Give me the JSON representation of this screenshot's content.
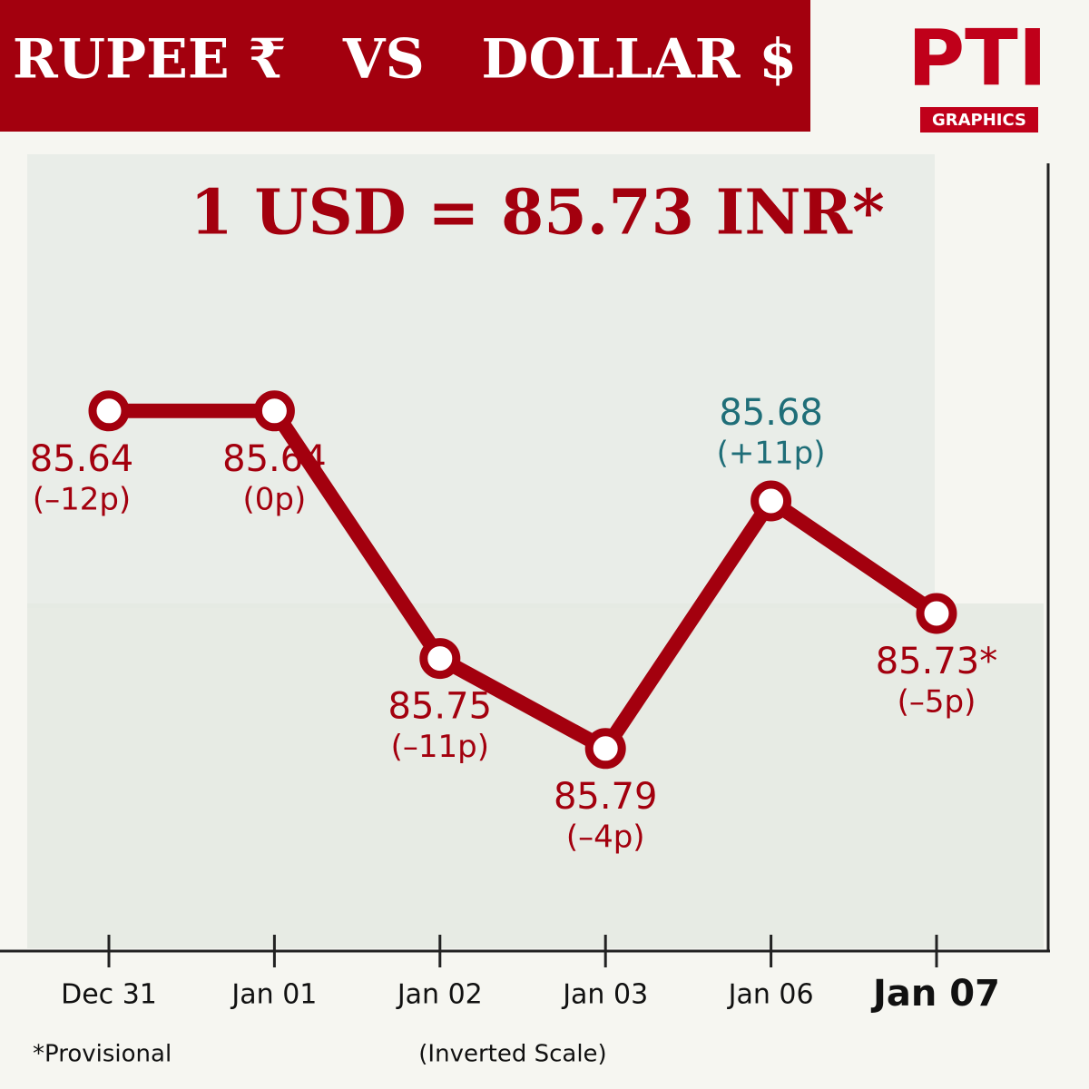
{
  "chart_data": {
    "type": "line",
    "title": "RUPEE ₹   VS   DOLLAR $",
    "headline": "1 USD = 85.73 INR*",
    "logo": {
      "mark": "PTI",
      "label": "GRAPHICS"
    },
    "categories": [
      "Dec 31",
      "Jan 01",
      "Jan 02",
      "Jan 03",
      "Jan 06",
      "Jan 07"
    ],
    "series": [
      {
        "name": "USD/INR",
        "color": "#a3000e",
        "values": [
          85.64,
          85.64,
          85.75,
          85.79,
          85.68,
          85.73
        ],
        "value_labels": [
          "85.64",
          "85.64",
          "85.75",
          "85.79",
          "85.68",
          "85.73*"
        ],
        "change_labels": [
          "(–12p)",
          "(0p)",
          "(–11p)",
          "(–4p)",
          "(+11p)",
          "(–5p)"
        ]
      }
    ],
    "rise_color": "#1f6e78",
    "ylim": [
      85.53,
      85.88
    ],
    "inverted": true,
    "footnote": "*Provisional",
    "scale_note": "(Inverted Scale)"
  }
}
